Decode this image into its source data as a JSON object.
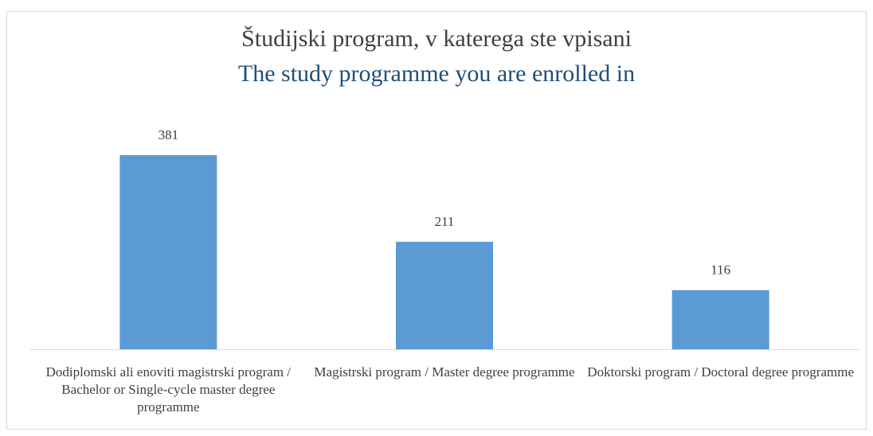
{
  "chart_data": {
    "type": "bar",
    "title": "Študijski program, v katerega ste vpisani",
    "subtitle": "The study programme you are enrolled in",
    "categories": [
      "Dodiplomski ali enoviti magistrski program / Bachelor or Single-cycle master degree programme",
      "Magistrski program / Master degree programme",
      "Doktorski program / Doctoral degree programme"
    ],
    "values": [
      381,
      211,
      116
    ],
    "color": "#5b9bd5"
  }
}
